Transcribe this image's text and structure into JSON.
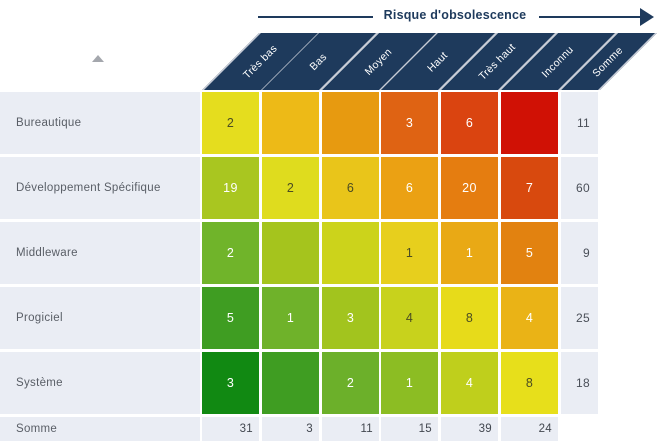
{
  "header": {
    "title": "Risque d'obsolescence",
    "sort_icon": "triangle-up-icon"
  },
  "colors": {
    "header_navy": "#1e3a5c",
    "header_separator": "#c7ccd6",
    "light_cell_bg": "#eaedf4",
    "label_text": "#595e66",
    "dark_digit": "#4b4d22",
    "white_digit": "#ffffff"
  },
  "chart_data": {
    "type": "heatmap",
    "title": "Risque d'obsolescence",
    "columns": [
      "Très bas",
      "Bas",
      "Moyen",
      "Haut",
      "Très haut",
      "Inconnu"
    ],
    "sum_label": "Somme",
    "column_headers": [
      "Très bas",
      "Bas",
      "Moyen",
      "Haut",
      "Très haut",
      "Inconnu",
      "Somme"
    ],
    "rows": [
      "Bureautique",
      "Développement Spécifique",
      "Middleware",
      "Progiciel",
      "Système"
    ],
    "values": [
      [
        2,
        null,
        null,
        3,
        6,
        null
      ],
      [
        19,
        2,
        6,
        6,
        20,
        7
      ],
      [
        2,
        null,
        null,
        1,
        1,
        5
      ],
      [
        5,
        1,
        3,
        4,
        8,
        4
      ],
      [
        3,
        null,
        2,
        1,
        4,
        8
      ]
    ],
    "row_sums": [
      11,
      60,
      9,
      25,
      18
    ],
    "col_sums": [
      31,
      3,
      11,
      15,
      39,
      24
    ],
    "grand_total": null,
    "cell_colors": [
      [
        "#e5dd1e",
        "#edba17",
        "#e79a10",
        "#df6313",
        "#da4410",
        "#d01105"
      ],
      [
        "#a9c620",
        "#dfdc1e",
        "#e9c51a",
        "#eba113",
        "#e57d10",
        "#d8490e"
      ],
      [
        "#70b42a",
        "#a5c41d",
        "#ccd31b",
        "#e7cf1d",
        "#e9a915",
        "#e28210"
      ],
      [
        "#3f9d22",
        "#6fb22a",
        "#a2c41e",
        "#c8d21c",
        "#e7db1a",
        "#eab316"
      ],
      [
        "#118912",
        "#3f9d22",
        "#6cb02a",
        "#8cbd23",
        "#bfcf1c",
        "#e7df1b"
      ]
    ],
    "cell_text_style": [
      [
        "dark",
        null,
        null,
        "white",
        "white",
        null
      ],
      [
        "white",
        "dark",
        "dark",
        "white",
        "white",
        "white"
      ],
      [
        "white",
        null,
        null,
        "dark",
        "white",
        "white"
      ],
      [
        "white",
        "white",
        "white",
        "dark",
        "dark",
        "white"
      ],
      [
        "white",
        null,
        "white",
        "white",
        "white",
        "dark"
      ]
    ],
    "legend_position": "none",
    "grid": false
  },
  "layout_note": "rows top-to-bottom, columns left-to-right as displayed"
}
